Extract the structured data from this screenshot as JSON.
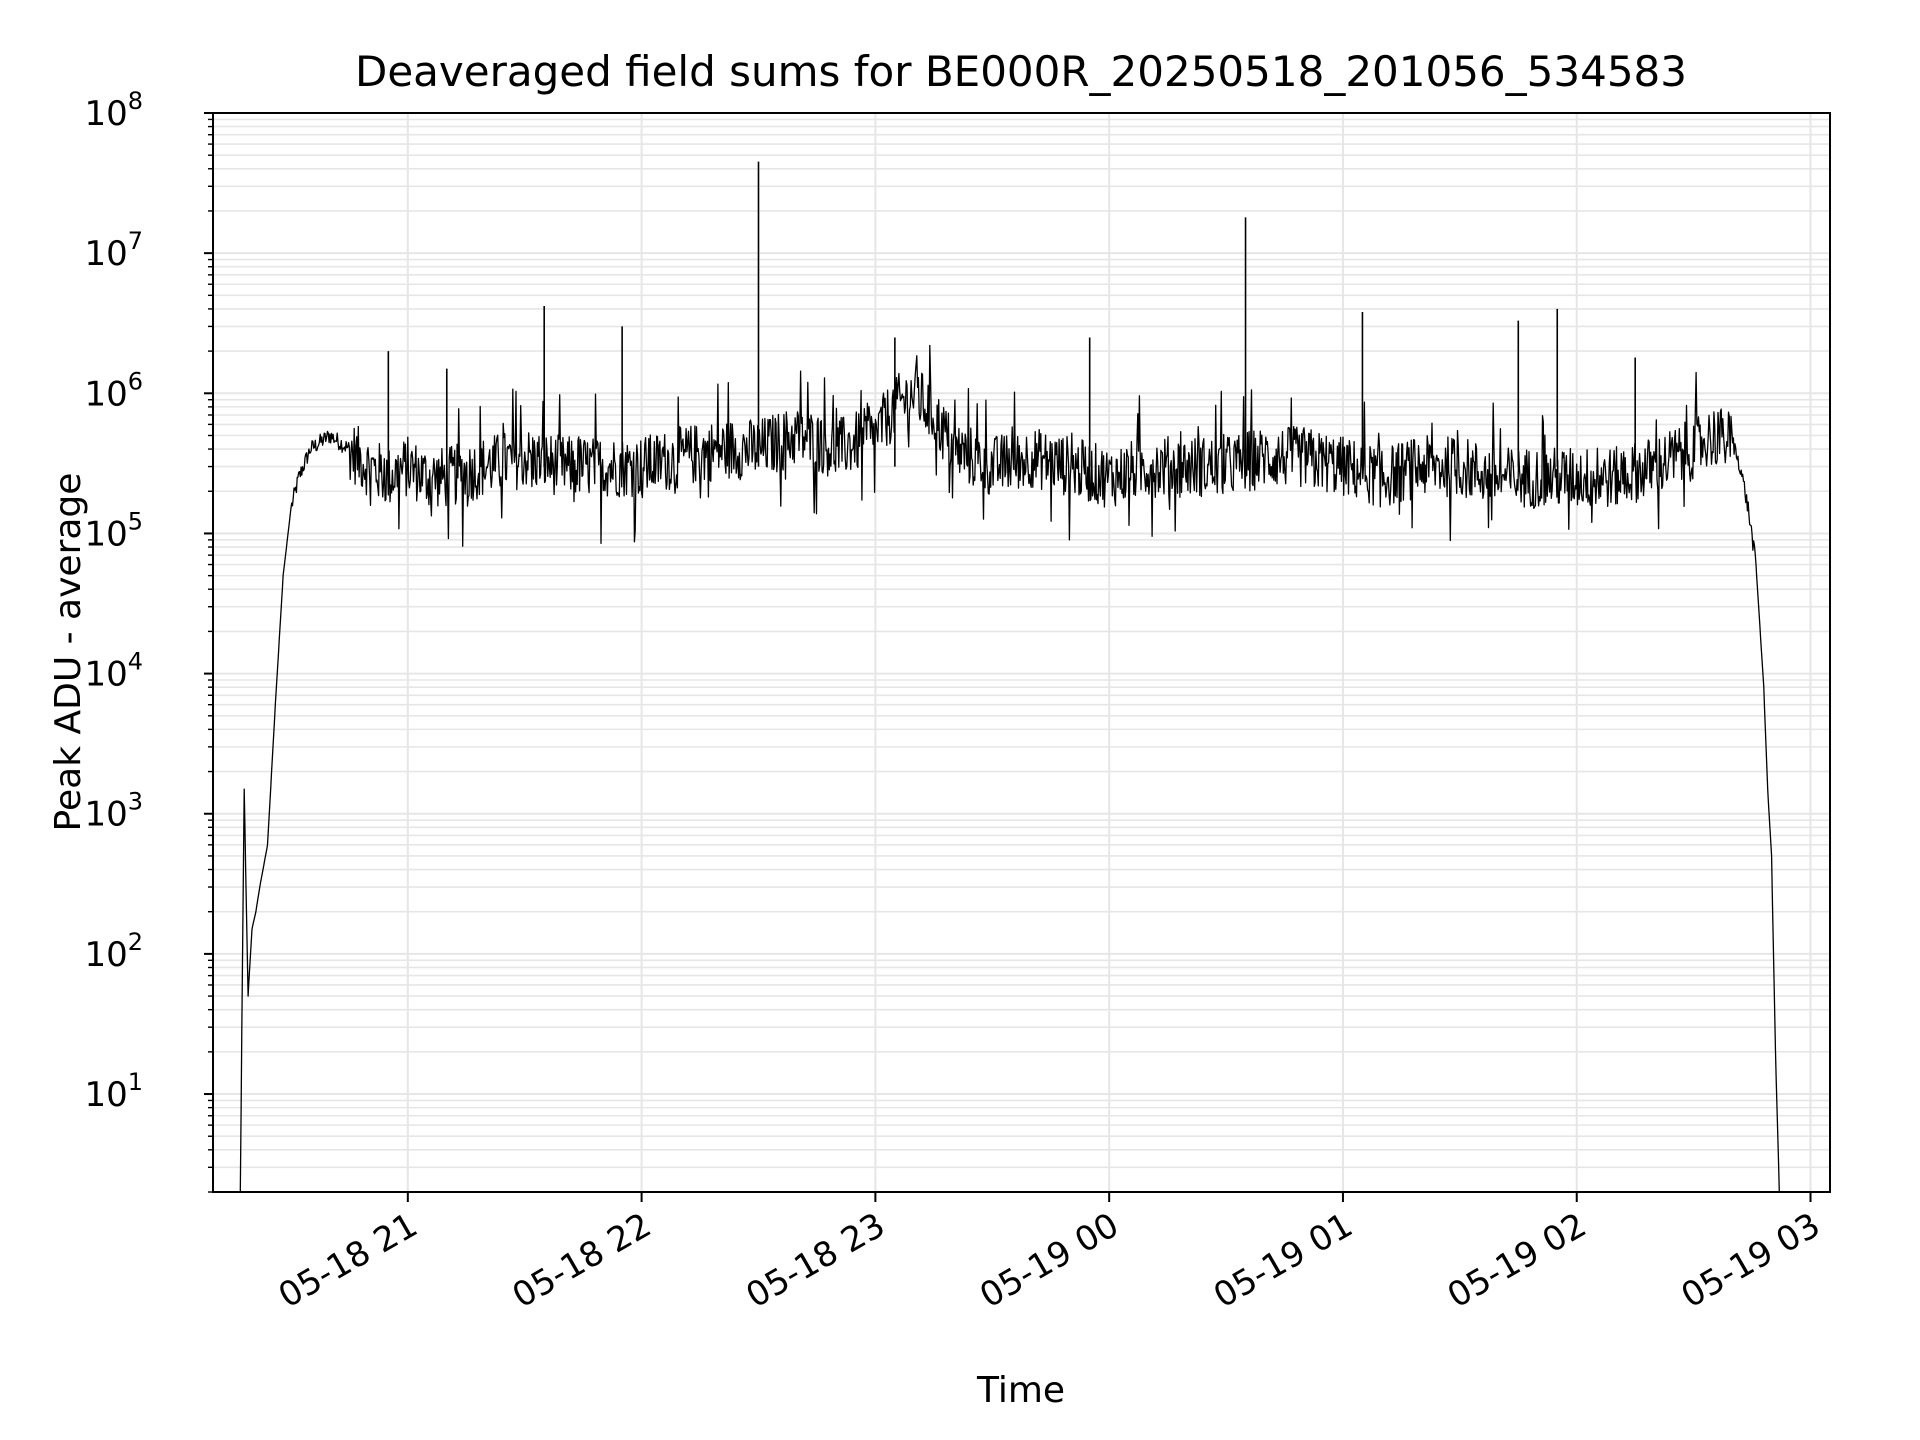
{
  "chart_data": {
    "type": "line",
    "title": "Deaveraged field sums for BE000R_20250518_201056_534583",
    "xlabel": "Time",
    "ylabel": "Peak ADU - average",
    "x_scale": "time",
    "y_scale": "log",
    "xlim": [
      "2025-05-18T20:10:00",
      "2025-05-19T03:05:00"
    ],
    "ylim": [
      2,
      100000000
    ],
    "grid": true,
    "legend": "none",
    "line_color": "#000000",
    "grid_color": "#e6e6e6",
    "x_ticks": [
      {
        "value": "2025-05-18T21:00:00",
        "label": "05-18 21"
      },
      {
        "value": "2025-05-18T22:00:00",
        "label": "05-18 22"
      },
      {
        "value": "2025-05-18T23:00:00",
        "label": "05-18 23"
      },
      {
        "value": "2025-05-19T00:00:00",
        "label": "05-19 00"
      },
      {
        "value": "2025-05-19T01:00:00",
        "label": "05-19 01"
      },
      {
        "value": "2025-05-19T02:00:00",
        "label": "05-19 02"
      },
      {
        "value": "2025-05-19T03:00:00",
        "label": "05-19 03"
      }
    ],
    "y_ticks": [
      {
        "value": 10,
        "base": "10",
        "exp": "1"
      },
      {
        "value": 100,
        "base": "10",
        "exp": "2"
      },
      {
        "value": 1000,
        "base": "10",
        "exp": "3"
      },
      {
        "value": 10000,
        "base": "10",
        "exp": "4"
      },
      {
        "value": 100000,
        "base": "10",
        "exp": "5"
      },
      {
        "value": 1000000,
        "base": "10",
        "exp": "6"
      },
      {
        "value": 10000000,
        "base": "10",
        "exp": "7"
      },
      {
        "value": 100000000,
        "base": "10",
        "exp": "8"
      }
    ],
    "series": [
      {
        "x": [
          "2025-05-18T20:17:00",
          "2025-05-18T20:18:00",
          "2025-05-18T20:19:00",
          "2025-05-18T20:20:00",
          "2025-05-18T20:21:00",
          "2025-05-18T20:22:00",
          "2025-05-18T20:24:00",
          "2025-05-18T20:26:00",
          "2025-05-18T20:28:00",
          "2025-05-18T20:30:00",
          "2025-05-18T20:32:00",
          "2025-05-18T20:35:00",
          "2025-05-18T20:40:00",
          "2025-05-18T20:45:00",
          "2025-05-18T20:50:00",
          "2025-05-18T20:55:00",
          "2025-05-18T21:00:00",
          "2025-05-18T21:05:00",
          "2025-05-18T21:10:00",
          "2025-05-18T21:20:00",
          "2025-05-18T21:30:00",
          "2025-05-18T21:40:00",
          "2025-05-18T21:50:00",
          "2025-05-18T22:00:00",
          "2025-05-18T22:10:00",
          "2025-05-18T22:20:00",
          "2025-05-18T22:30:00",
          "2025-05-18T22:40:00",
          "2025-05-18T22:50:00",
          "2025-05-18T23:00:00",
          "2025-05-18T23:05:00",
          "2025-05-18T23:10:00",
          "2025-05-18T23:15:00",
          "2025-05-18T23:20:00",
          "2025-05-18T23:30:00",
          "2025-05-18T23:40:00",
          "2025-05-18T23:50:00",
          "2025-05-19T00:00:00",
          "2025-05-19T00:10:00",
          "2025-05-19T00:20:00",
          "2025-05-19T00:30:00",
          "2025-05-19T00:40:00",
          "2025-05-19T00:50:00",
          "2025-05-19T01:00:00",
          "2025-05-19T01:10:00",
          "2025-05-19T01:20:00",
          "2025-05-19T01:30:00",
          "2025-05-19T01:40:00",
          "2025-05-19T01:50:00",
          "2025-05-19T02:00:00",
          "2025-05-19T02:10:00",
          "2025-05-19T02:20:00",
          "2025-05-19T02:30:00",
          "2025-05-19T02:35:00",
          "2025-05-19T02:40:00",
          "2025-05-19T02:42:00",
          "2025-05-19T02:44:00",
          "2025-05-19T02:46:00",
          "2025-05-19T02:48:00",
          "2025-05-19T02:49:00",
          "2025-05-19T02:50:00",
          "2025-05-19T02:51:00",
          "2025-05-19T02:52:00"
        ],
        "y": [
          2,
          1500,
          50,
          150,
          200,
          300,
          600,
          6000,
          50000,
          150000,
          250000,
          400000,
          500000,
          400000,
          300000,
          250000,
          300000,
          250000,
          250000,
          300000,
          350000,
          300000,
          300000,
          300000,
          350000,
          400000,
          400000,
          500000,
          400000,
          500000,
          800000,
          1000000,
          700000,
          400000,
          300000,
          350000,
          300000,
          250000,
          300000,
          300000,
          300000,
          350000,
          350000,
          300000,
          250000,
          300000,
          300000,
          250000,
          250000,
          250000,
          250000,
          300000,
          400000,
          500000,
          450000,
          300000,
          150000,
          60000,
          8000,
          1500,
          500,
          20,
          2
        ]
      }
    ],
    "spikes": [
      {
        "x": "2025-05-18T20:55:00",
        "y": 2000000
      },
      {
        "x": "2025-05-18T21:10:00",
        "y": 1500000
      },
      {
        "x": "2025-05-18T21:35:00",
        "y": 4200000
      },
      {
        "x": "2025-05-18T21:55:00",
        "y": 3000000
      },
      {
        "x": "2025-05-18T22:30:00",
        "y": 45000000
      },
      {
        "x": "2025-05-18T23:05:00",
        "y": 2500000
      },
      {
        "x": "2025-05-18T23:55:00",
        "y": 2500000
      },
      {
        "x": "2025-05-19T00:35:00",
        "y": 18000000
      },
      {
        "x": "2025-05-19T01:05:00",
        "y": 3800000
      },
      {
        "x": "2025-05-19T01:45:00",
        "y": 3300000
      },
      {
        "x": "2025-05-19T01:55:00",
        "y": 4000000
      },
      {
        "x": "2025-05-19T02:15:00",
        "y": 1800000
      }
    ]
  }
}
